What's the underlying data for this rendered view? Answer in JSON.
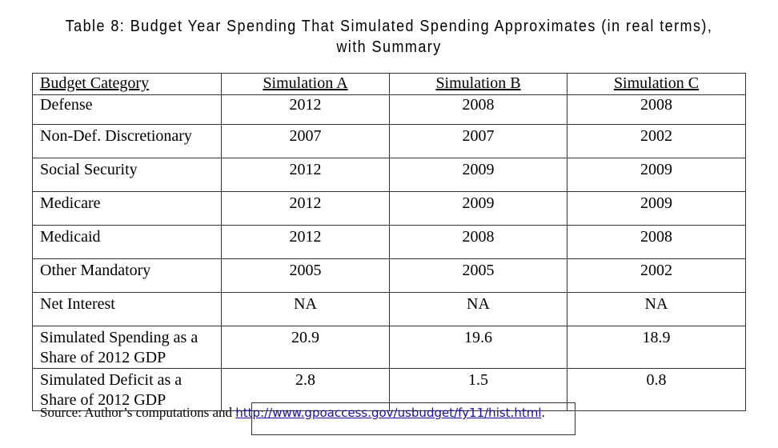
{
  "title": {
    "line1": "Table 8: Budget Year Spending That Simulated Spending Approximates (in real terms),",
    "line2": "with Summary"
  },
  "table": {
    "headers": [
      "Budget Category",
      "Simulation A",
      "Simulation B",
      "Simulation C"
    ],
    "rows": [
      [
        "Defense",
        "2012",
        "2008",
        "2008"
      ],
      [
        "Non-Def. Discretionary",
        "2007",
        "2007",
        "2002"
      ],
      [
        "Social Security",
        "2012",
        "2009",
        "2009"
      ],
      [
        "Medicare",
        "2012",
        "2009",
        "2009"
      ],
      [
        "Medicaid",
        "2012",
        "2008",
        "2008"
      ],
      [
        "Other Mandatory",
        "2005",
        "2005",
        "2002"
      ],
      [
        "Net Interest",
        "NA",
        "NA",
        "NA"
      ],
      [
        "Simulated Spending as a Share of 2012 GDP",
        "20.9",
        "19.6",
        "18.9"
      ],
      [
        "Simulated Deficit as a Share of 2012 GDP",
        "2.8",
        "1.5",
        "0.8"
      ]
    ]
  },
  "source": {
    "prefix": "Source: Author’s computations and ",
    "link": "http://www.gpoaccess.gov/usbudget/fy11/hist.html",
    "suffix": "."
  }
}
